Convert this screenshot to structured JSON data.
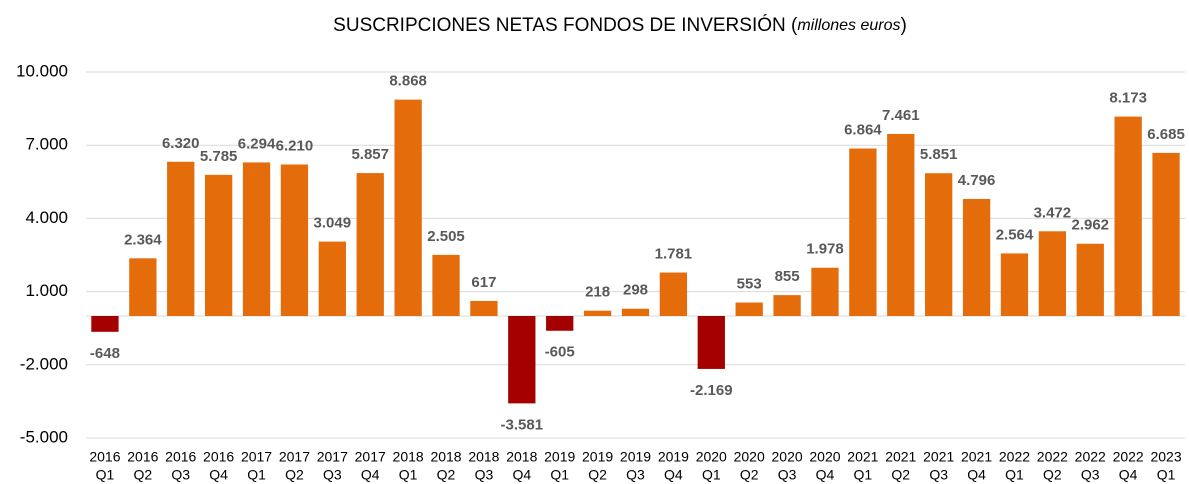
{
  "chart_data": {
    "type": "bar",
    "title_parts": [
      "SUSCRIPCIONES NETAS FONDOS DE INVERSIÓN (",
      "millones euros",
      ")"
    ],
    "categories": [
      [
        "2016",
        "Q1"
      ],
      [
        "2016",
        "Q2"
      ],
      [
        "2016",
        "Q3"
      ],
      [
        "2016",
        "Q4"
      ],
      [
        "2017",
        "Q1"
      ],
      [
        "2017",
        "Q2"
      ],
      [
        "2017",
        "Q3"
      ],
      [
        "2017",
        "Q4"
      ],
      [
        "2018",
        "Q1"
      ],
      [
        "2018",
        "Q2"
      ],
      [
        "2018",
        "Q3"
      ],
      [
        "2018",
        "Q4"
      ],
      [
        "2019",
        "Q1"
      ],
      [
        "2019",
        "Q2"
      ],
      [
        "2019",
        "Q3"
      ],
      [
        "2019",
        "Q4"
      ],
      [
        "2020",
        "Q1"
      ],
      [
        "2020",
        "Q2"
      ],
      [
        "2020",
        "Q3"
      ],
      [
        "2020",
        "Q4"
      ],
      [
        "2021",
        "Q1"
      ],
      [
        "2021",
        "Q2"
      ],
      [
        "2021",
        "Q3"
      ],
      [
        "2021",
        "Q4"
      ],
      [
        "2022",
        "Q1"
      ],
      [
        "2022",
        "Q2"
      ],
      [
        "2022",
        "Q3"
      ],
      [
        "2022",
        "Q4"
      ],
      [
        "2023",
        "Q1"
      ]
    ],
    "values": [
      -648,
      2364,
      6320,
      5785,
      6294,
      6210,
      3049,
      5857,
      8868,
      2505,
      617,
      -3581,
      -605,
      218,
      298,
      1781,
      -2169,
      553,
      855,
      1978,
      6864,
      7461,
      5851,
      4796,
      2564,
      3472,
      2962,
      8173,
      6685
    ],
    "value_labels": [
      "-648",
      "2.364",
      "6.320",
      "5.785",
      "6.294",
      "6.210",
      "3.049",
      "5.857",
      "8.868",
      "2.505",
      "617",
      "-3.581",
      "-605",
      "218",
      "298",
      "1.781",
      "-2.169",
      "553",
      "855",
      "1.978",
      "6.864",
      "7.461",
      "5.851",
      "4.796",
      "2.564",
      "3.472",
      "2.962",
      "8.173",
      "6.685"
    ],
    "color": "#e46c0a",
    "negative_color": "#a50000",
    "ylim": [
      -5000,
      10000
    ],
    "yticks": [
      {
        "value": -5000,
        "label": "-5.000"
      },
      {
        "value": -2000,
        "label": "-2.000"
      },
      {
        "value": 1000,
        "label": "1.000"
      },
      {
        "value": 4000,
        "label": "4.000"
      },
      {
        "value": 7000,
        "label": "7.000"
      },
      {
        "value": 10000,
        "label": "10.000"
      }
    ],
    "grid": true
  }
}
